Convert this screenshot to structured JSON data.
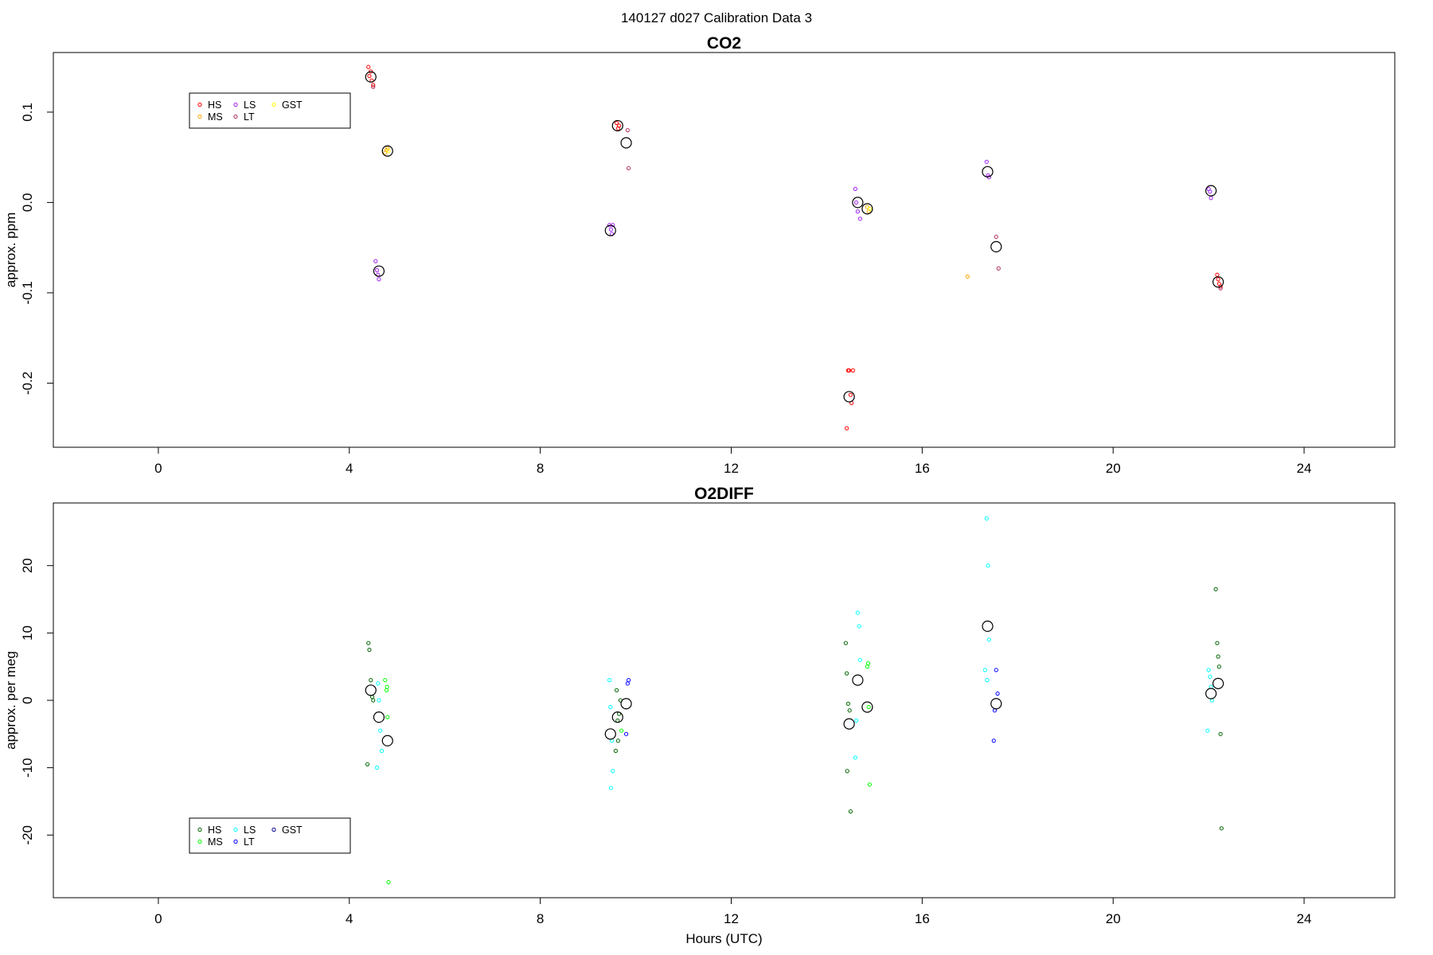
{
  "page_title": "140127   d027   Calibration Data 3",
  "chart_data": [
    {
      "type": "scatter",
      "title": "CO2",
      "xlabel": "",
      "ylabel": "approx. ppm",
      "xlim": [
        -2.2,
        25.9
      ],
      "ylim": [
        -0.271,
        0.166
      ],
      "xticks": [
        0,
        4,
        8,
        12,
        16,
        20,
        24
      ],
      "yticks": [
        -0.2,
        -0.1,
        0.0,
        0.1
      ],
      "ytick_labels": [
        "-0.2",
        "-0.1",
        "0.0",
        "0.1"
      ],
      "legend": {
        "placement": "top-left",
        "entries": [
          {
            "label": "HS",
            "color": "#ff0000"
          },
          {
            "label": "MS",
            "color": "#ffa500"
          },
          {
            "label": "LS",
            "color": "#a020f0"
          },
          {
            "label": "LT",
            "color": "#b03060"
          },
          {
            "label": "GST",
            "color": "#ffff00"
          }
        ]
      },
      "series": [
        {
          "name": "HS",
          "color": "#ff0000",
          "x": [
            4.4,
            4.42,
            4.45,
            4.47,
            4.5,
            9.6,
            9.63,
            9.65,
            14.45,
            14.47,
            14.5,
            14.52,
            14.55,
            14.42,
            22.2,
            22.22,
            22.25,
            22.18
          ],
          "y": [
            0.15,
            0.14,
            0.145,
            0.135,
            0.13,
            0.088,
            0.082,
            0.085,
            -0.186,
            -0.186,
            -0.213,
            -0.222,
            -0.186,
            -0.25,
            -0.085,
            -0.09,
            -0.093,
            -0.08
          ]
        },
        {
          "name": "MS",
          "color": "#ffa500",
          "x": [
            4.75,
            4.78,
            4.8,
            14.85,
            14.88,
            16.95
          ],
          "y": [
            0.055,
            0.058,
            0.06,
            -0.005,
            -0.01,
            -0.082
          ]
        },
        {
          "name": "LS",
          "color": "#a020f0",
          "x": [
            4.55,
            4.58,
            4.6,
            4.62,
            9.45,
            9.48,
            9.5,
            9.52,
            14.6,
            14.62,
            14.65,
            14.7,
            17.35,
            17.38,
            17.4,
            22.0,
            22.03,
            22.05
          ],
          "y": [
            -0.065,
            -0.075,
            -0.08,
            -0.085,
            -0.025,
            -0.03,
            -0.035,
            -0.025,
            0.015,
            0.0,
            -0.01,
            -0.018,
            0.045,
            0.03,
            0.028,
            0.015,
            0.012,
            0.005
          ]
        },
        {
          "name": "LT",
          "color": "#b03060",
          "x": [
            4.5,
            9.85,
            9.83,
            17.55,
            17.6,
            22.25
          ],
          "y": [
            0.128,
            0.038,
            0.08,
            -0.038,
            -0.073,
            -0.095
          ]
        },
        {
          "name": "GST",
          "color": "#ffff00",
          "x": [
            4.82,
            14.9
          ],
          "y": [
            0.057,
            -0.007
          ]
        },
        {
          "name": "mean",
          "color": "#000000",
          "x": [
            4.45,
            4.62,
            4.8,
            9.47,
            9.62,
            9.8,
            14.47,
            14.65,
            14.85,
            17.37,
            17.55,
            22.05,
            22.2
          ],
          "y": [
            0.139,
            -0.076,
            0.057,
            -0.031,
            0.085,
            0.066,
            -0.215,
            0.0,
            -0.007,
            0.034,
            -0.049,
            0.013,
            -0.088
          ]
        }
      ]
    },
    {
      "type": "scatter",
      "title": "O2DIFF",
      "xlabel": "Hours (UTC)",
      "ylabel": "approx. per meg",
      "xlim": [
        -2.2,
        25.9
      ],
      "ylim": [
        -29.3,
        29.3
      ],
      "xticks": [
        0,
        4,
        8,
        12,
        16,
        20,
        24
      ],
      "yticks": [
        -20,
        -10,
        0,
        10,
        20
      ],
      "ytick_labels": [
        "-20",
        "-10",
        "0",
        "10",
        "20"
      ],
      "legend": {
        "placement": "bottom-left",
        "entries": [
          {
            "label": "HS",
            "color": "#006400"
          },
          {
            "label": "MS",
            "color": "#00ff00"
          },
          {
            "label": "LS",
            "color": "#00ffff"
          },
          {
            "label": "LT",
            "color": "#0000ff"
          },
          {
            "label": "GST",
            "color": "#00008b"
          }
        ]
      },
      "series": [
        {
          "name": "HS",
          "color": "#006400",
          "x": [
            4.4,
            4.42,
            4.45,
            4.48,
            4.5,
            4.38,
            9.6,
            9.62,
            9.65,
            9.68,
            9.58,
            9.63,
            14.4,
            14.42,
            14.45,
            14.48,
            14.5,
            14.43,
            22.15,
            22.18,
            22.2,
            22.22,
            22.25,
            22.27
          ],
          "y": [
            8.5,
            7.5,
            3.0,
            0.5,
            0.0,
            -9.5,
            1.5,
            -3.0,
            -2.0,
            0.0,
            -7.5,
            -6.0,
            8.5,
            4.0,
            -0.5,
            -1.5,
            -16.5,
            -10.5,
            16.5,
            8.5,
            6.5,
            5.0,
            -5.0,
            -19.0
          ]
        },
        {
          "name": "MS",
          "color": "#00ff00",
          "x": [
            4.75,
            4.78,
            4.8,
            4.82,
            4.79,
            9.7,
            14.85,
            14.88,
            14.9,
            14.87
          ],
          "y": [
            3.0,
            1.5,
            -2.5,
            -27.0,
            2.0,
            -4.5,
            5.0,
            -1.0,
            -12.5,
            5.5
          ]
        },
        {
          "name": "LS",
          "color": "#00ffff",
          "x": [
            4.6,
            4.62,
            4.65,
            4.68,
            4.58,
            9.45,
            9.47,
            9.5,
            9.52,
            9.48,
            14.65,
            14.68,
            14.7,
            14.62,
            14.6,
            17.35,
            17.38,
            17.4,
            17.32,
            17.36,
            22.0,
            22.03,
            22.05,
            22.07,
            21.98
          ],
          "y": [
            2.5,
            0.0,
            -4.5,
            -7.5,
            -10.0,
            3.0,
            -1.0,
            -6.0,
            -10.5,
            -13.0,
            13.0,
            11.0,
            6.0,
            -3.0,
            -8.5,
            27.0,
            20.0,
            9.0,
            4.5,
            3.0,
            4.5,
            3.5,
            2.0,
            0.0,
            -4.5
          ]
        },
        {
          "name": "LT",
          "color": "#0000ff",
          "x": [
            9.85,
            9.83,
            9.8,
            17.55,
            17.58,
            17.52,
            17.5
          ],
          "y": [
            3.0,
            2.5,
            -5.0,
            4.5,
            1.0,
            -1.5,
            -6.0
          ]
        },
        {
          "name": "GST",
          "color": "#00008b",
          "x": [],
          "y": []
        },
        {
          "name": "mean",
          "color": "#000000",
          "x": [
            4.45,
            4.62,
            4.8,
            9.47,
            9.62,
            9.8,
            14.47,
            14.65,
            14.85,
            17.37,
            17.55,
            22.05,
            22.2
          ],
          "y": [
            1.5,
            -2.5,
            -6.0,
            -5.0,
            -2.5,
            -0.5,
            -3.5,
            3.0,
            -1.0,
            11.0,
            -0.5,
            1.0,
            2.5
          ]
        }
      ]
    }
  ]
}
